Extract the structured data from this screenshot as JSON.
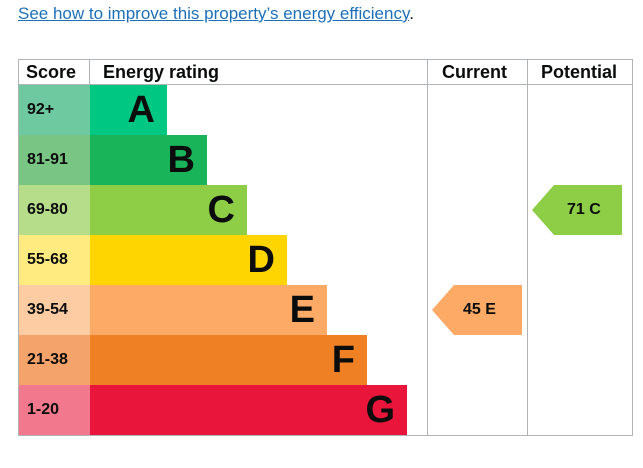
{
  "link": {
    "text": "See how to improve this property’s energy efficiency",
    "suffix": "."
  },
  "table": {
    "headers": {
      "score": "Score",
      "rating": "Energy rating",
      "current": "Current",
      "potential": "Potential"
    },
    "rows": [
      {
        "band": "A",
        "score": "92+",
        "score_color": "#6ec9a0",
        "bar_color": "#00c781"
      },
      {
        "band": "B",
        "score": "81-91",
        "score_color": "#79c584",
        "bar_color": "#19b459"
      },
      {
        "band": "C",
        "score": "69-80",
        "score_color": "#b6dd8a",
        "bar_color": "#8dce46"
      },
      {
        "band": "D",
        "score": "55-68",
        "score_color": "#ffeb80",
        "bar_color": "#ffd500"
      },
      {
        "band": "E",
        "score": "39-54",
        "score_color": "#fdcca3",
        "bar_color": "#fcaa65"
      },
      {
        "band": "F",
        "score": "21-38",
        "score_color": "#f4a36a",
        "bar_color": "#ef8023"
      },
      {
        "band": "G",
        "score": "1-20",
        "score_color": "#f2798d",
        "bar_color": "#e9153b"
      }
    ]
  },
  "current": {
    "label": "45 E",
    "band": "E",
    "color": "#fcaa65"
  },
  "potential": {
    "label": "71 C",
    "band": "C",
    "color": "#8dce46"
  }
}
